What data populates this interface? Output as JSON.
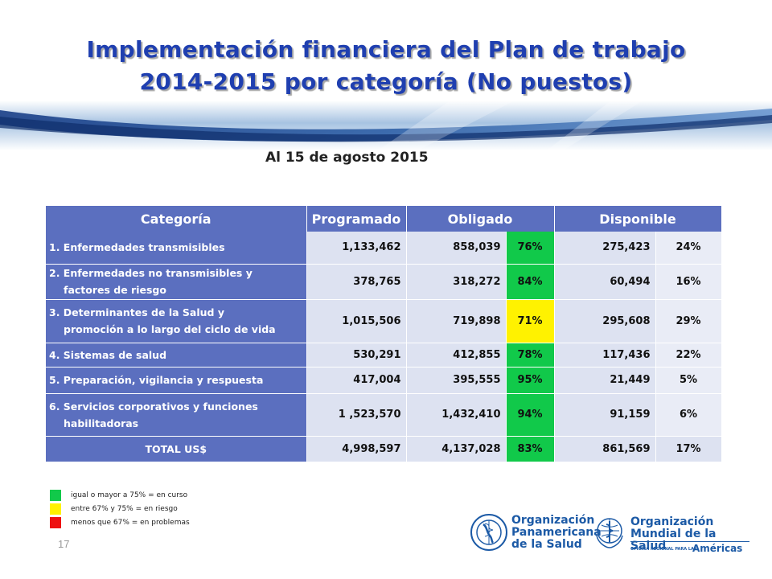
{
  "title_line1": "Implementación financiera del Plan de trabajo",
  "title_line2": "2014-2015 por categoría (No puestos)",
  "subtitle": "Al 15 de agosto 2015",
  "table": {
    "headers": [
      "Categoría",
      "Programado",
      "Obligado",
      "Disponible"
    ],
    "rows": [
      {
        "cat1": "1. Enfermedades transmisibles",
        "cat2": "",
        "programado": "1,133,462",
        "obligado": "858,039",
        "obligado_pct": "76%",
        "disponible": "275,423",
        "disponible_pct": "24%",
        "status": "green"
      },
      {
        "cat1": "2. Enfermedades no transmisibles y",
        "cat2": "factores de riesgo",
        "programado": "378,765",
        "obligado": "318,272",
        "obligado_pct": "84%",
        "disponible": "60,494",
        "disponible_pct": "16%",
        "status": "green"
      },
      {
        "cat1": "3. Determinantes de la Salud y",
        "cat2": "promoción a lo largo del ciclo de vida",
        "programado": "1,015,506",
        "obligado": "719,898",
        "obligado_pct": "71%",
        "disponible": "295,608",
        "disponible_pct": "29%",
        "status": "yellow"
      },
      {
        "cat1": "4. Sistemas de salud",
        "cat2": "",
        "programado": "530,291",
        "obligado": "412,855",
        "obligado_pct": "78%",
        "disponible": "117,436",
        "disponible_pct": "22%",
        "status": "green"
      },
      {
        "cat1": "5. Preparación, vigilancia y respuesta",
        "cat2": "",
        "programado": "417,004",
        "obligado": "395,555",
        "obligado_pct": "95%",
        "disponible": "21,449",
        "disponible_pct": "5%",
        "status": "green"
      },
      {
        "cat1": "6. Servicios corporativos y funciones",
        "cat2": "habilitadoras",
        "programado": "1 ,523,570",
        "obligado": "1,432,410",
        "obligado_pct": "94%",
        "disponible": "91,159",
        "disponible_pct": "6%",
        "status": "green"
      }
    ],
    "total": {
      "label": "TOTAL US$",
      "programado": "4,998,597",
      "obligado": "4,137,028",
      "obligado_pct": "83%",
      "disponible": "861,569",
      "disponible_pct": "17%",
      "status": "green"
    }
  },
  "legend": [
    {
      "color": "#11c94a",
      "text": "igual  o mayor a 75% = en curso"
    },
    {
      "color": "#fff200",
      "text": "entre 67% y 75% = en riesgo"
    },
    {
      "color": "#ee1111",
      "text": "menos que 67% = en problemas"
    }
  ],
  "page_number": "17",
  "logos": {
    "paho_line1": "Organización",
    "paho_line2": "Panamericana",
    "paho_line3": "de la Salud",
    "who_line1": "Organización",
    "who_line2": "Mundial de la Salud",
    "who_small": "OFICINA REGIONAL PARA LAS",
    "who_region": "Américas"
  },
  "colors": {
    "header_blue": "#5b6fbf",
    "cell_light": "#dde2f1",
    "title_blue": "#1f3fb0",
    "status_green": "#11c94a",
    "status_yellow": "#fff200",
    "status_red": "#ee1111"
  }
}
